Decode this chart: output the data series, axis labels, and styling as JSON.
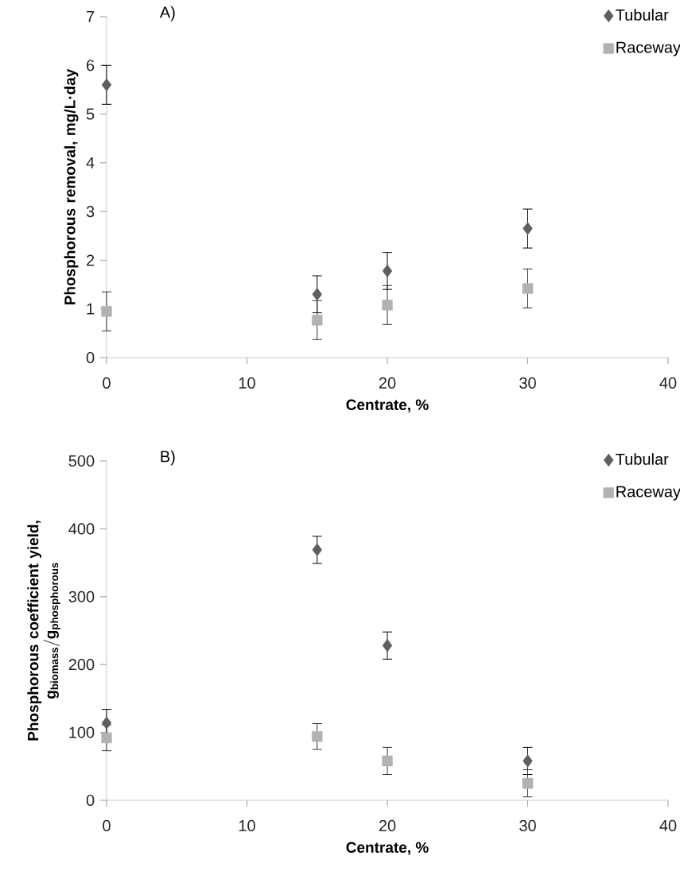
{
  "chart_data": [
    {
      "type": "scatter",
      "title": "A)",
      "xlabel": "Centrate, %",
      "ylabel": "Phosphorous removal, mg/L·day",
      "x": [
        0,
        15,
        20,
        30
      ],
      "xlim": [
        0,
        40
      ],
      "xticks": [
        0,
        10,
        20,
        30,
        40
      ],
      "ylim": [
        0,
        7
      ],
      "yticks": [
        0,
        1,
        2,
        3,
        4,
        5,
        6,
        7
      ],
      "legend": "top right",
      "series": [
        {
          "name": "Tubular",
          "color": "#5f5f5f",
          "marker": "diamond",
          "values": [
            5.6,
            1.3,
            1.78,
            2.65
          ],
          "errors": [
            0.4,
            0.38,
            0.38,
            0.4
          ]
        },
        {
          "name": "Raceway",
          "color": "#b2b2b2",
          "marker": "square",
          "values": [
            0.95,
            0.77,
            1.08,
            1.42
          ],
          "errors": [
            0.4,
            0.4,
            0.4,
            0.4
          ]
        }
      ]
    },
    {
      "type": "scatter",
      "title": "B)",
      "xlabel": "Centrate, %",
      "ylabel": "\\begin{array}{c}\\textbf{Phosphorous coefficient yield,}\\\\ \\mathbf{g_{biomass}/g_{phosphorous}}\\end{array}",
      "x": [
        0,
        15,
        20,
        30
      ],
      "xlim": [
        0,
        40
      ],
      "xticks": [
        0,
        10,
        20,
        30,
        40
      ],
      "ylim": [
        0,
        500
      ],
      "yticks": [
        0,
        100,
        200,
        300,
        400,
        500
      ],
      "legend": "top right",
      "series": [
        {
          "name": "Tubular",
          "color": "#5f5f5f",
          "marker": "diamond",
          "values": [
            114,
            369,
            228,
            58
          ],
          "errors": [
            20,
            20,
            20,
            20
          ]
        },
        {
          "name": "Raceway",
          "color": "#b2b2b2",
          "marker": "square",
          "values": [
            92,
            94,
            58,
            25
          ],
          "errors": [
            19,
            19,
            20,
            20
          ]
        }
      ]
    }
  ]
}
